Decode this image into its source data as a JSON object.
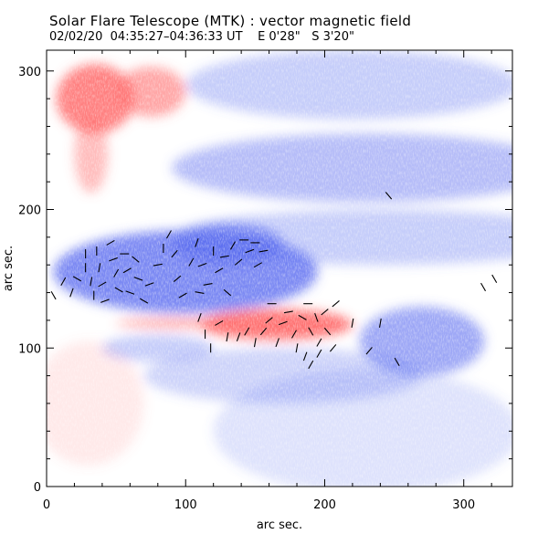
{
  "title": "Solar Flare Telescope (MTK) : vector magnetic field",
  "subtitle": {
    "date": "02/02/20",
    "time_range": "04:35:27–04:36:33 UT",
    "offset_e": "E 0'28\"",
    "offset_s": "S 3'20\""
  },
  "chart_data": {
    "type": "heatmap",
    "title": "Solar Flare Telescope (MTK) : vector magnetic field",
    "xlabel": "arc sec.",
    "ylabel": "arc sec.",
    "xlim": [
      0,
      335
    ],
    "ylim": [
      0,
      315
    ],
    "xticks": [
      0,
      100,
      200,
      300
    ],
    "yticks": [
      0,
      100,
      200,
      300
    ],
    "colors": {
      "positive": "#ff6b6b",
      "negative": "#5a6cf0",
      "background": "#ffffff",
      "vector": "#000000"
    },
    "regions": [
      {
        "polarity": "positive",
        "x": 35,
        "y": 280,
        "rx": 28,
        "ry": 25,
        "strength": 0.85
      },
      {
        "polarity": "positive",
        "x": 75,
        "y": 285,
        "rx": 25,
        "ry": 18,
        "strength": 0.6
      },
      {
        "polarity": "positive",
        "x": 32,
        "y": 240,
        "rx": 12,
        "ry": 28,
        "strength": 0.45
      },
      {
        "polarity": "positive",
        "x": 165,
        "y": 117,
        "rx": 55,
        "ry": 11,
        "strength": 0.95
      },
      {
        "polarity": "positive",
        "x": 95,
        "y": 118,
        "rx": 45,
        "ry": 4,
        "strength": 0.55
      },
      {
        "polarity": "positive",
        "x": 30,
        "y": 60,
        "rx": 40,
        "ry": 45,
        "strength": 0.15
      },
      {
        "polarity": "negative",
        "x": 220,
        "y": 290,
        "rx": 120,
        "ry": 25,
        "strength": 0.35
      },
      {
        "polarity": "negative",
        "x": 230,
        "y": 230,
        "rx": 140,
        "ry": 25,
        "strength": 0.45
      },
      {
        "polarity": "negative",
        "x": 240,
        "y": 180,
        "rx": 150,
        "ry": 20,
        "strength": 0.35
      },
      {
        "polarity": "negative",
        "x": 100,
        "y": 155,
        "rx": 95,
        "ry": 30,
        "strength": 0.8
      },
      {
        "polarity": "negative",
        "x": 130,
        "y": 175,
        "rx": 40,
        "ry": 15,
        "strength": 0.7
      },
      {
        "polarity": "negative",
        "x": 270,
        "y": 105,
        "rx": 45,
        "ry": 25,
        "strength": 0.6
      },
      {
        "polarity": "negative",
        "x": 170,
        "y": 80,
        "rx": 100,
        "ry": 20,
        "strength": 0.3
      },
      {
        "polarity": "negative",
        "x": 230,
        "y": 40,
        "rx": 110,
        "ry": 45,
        "strength": 0.2
      },
      {
        "polarity": "negative",
        "x": 80,
        "y": 100,
        "rx": 40,
        "ry": 10,
        "strength": 0.35
      }
    ],
    "vectors": [
      {
        "x": 12,
        "y": 148,
        "angle": 60
      },
      {
        "x": 18,
        "y": 140,
        "angle": 70
      },
      {
        "x": 22,
        "y": 150,
        "angle": -30
      },
      {
        "x": 28,
        "y": 168,
        "angle": 90
      },
      {
        "x": 28,
        "y": 158,
        "angle": 90
      },
      {
        "x": 32,
        "y": 148,
        "angle": 80
      },
      {
        "x": 34,
        "y": 138,
        "angle": 90
      },
      {
        "x": 36,
        "y": 170,
        "angle": 90
      },
      {
        "x": 38,
        "y": 158,
        "angle": 80
      },
      {
        "x": 40,
        "y": 146,
        "angle": 30
      },
      {
        "x": 42,
        "y": 134,
        "angle": 20
      },
      {
        "x": 46,
        "y": 176,
        "angle": 30
      },
      {
        "x": 48,
        "y": 164,
        "angle": 20
      },
      {
        "x": 50,
        "y": 154,
        "angle": 60
      },
      {
        "x": 52,
        "y": 142,
        "angle": -30
      },
      {
        "x": 56,
        "y": 168,
        "angle": 0
      },
      {
        "x": 58,
        "y": 156,
        "angle": 30
      },
      {
        "x": 60,
        "y": 140,
        "angle": -20
      },
      {
        "x": 64,
        "y": 164,
        "angle": -40
      },
      {
        "x": 66,
        "y": 150,
        "angle": -20
      },
      {
        "x": 70,
        "y": 134,
        "angle": -30
      },
      {
        "x": 74,
        "y": 146,
        "angle": 20
      },
      {
        "x": 80,
        "y": 160,
        "angle": 10
      },
      {
        "x": 84,
        "y": 172,
        "angle": 90
      },
      {
        "x": 88,
        "y": 182,
        "angle": 60
      },
      {
        "x": 92,
        "y": 168,
        "angle": 50
      },
      {
        "x": 94,
        "y": 150,
        "angle": 40
      },
      {
        "x": 98,
        "y": 138,
        "angle": 30
      },
      {
        "x": 104,
        "y": 162,
        "angle": 60
      },
      {
        "x": 108,
        "y": 176,
        "angle": 70
      },
      {
        "x": 112,
        "y": 160,
        "angle": 20
      },
      {
        "x": 116,
        "y": 146,
        "angle": 10
      },
      {
        "x": 120,
        "y": 170,
        "angle": 90
      },
      {
        "x": 124,
        "y": 156,
        "angle": 30
      },
      {
        "x": 128,
        "y": 166,
        "angle": 10
      },
      {
        "x": 130,
        "y": 140,
        "angle": -40
      },
      {
        "x": 134,
        "y": 174,
        "angle": 60
      },
      {
        "x": 138,
        "y": 162,
        "angle": 40
      },
      {
        "x": 142,
        "y": 178,
        "angle": 0
      },
      {
        "x": 146,
        "y": 170,
        "angle": 20
      },
      {
        "x": 150,
        "y": 176,
        "angle": 0
      },
      {
        "x": 152,
        "y": 160,
        "angle": 30
      },
      {
        "x": 156,
        "y": 170,
        "angle": 10
      },
      {
        "x": 110,
        "y": 122,
        "angle": 70
      },
      {
        "x": 114,
        "y": 110,
        "angle": 90
      },
      {
        "x": 118,
        "y": 100,
        "angle": 90
      },
      {
        "x": 124,
        "y": 118,
        "angle": 30
      },
      {
        "x": 130,
        "y": 108,
        "angle": 80
      },
      {
        "x": 138,
        "y": 108,
        "angle": 70
      },
      {
        "x": 144,
        "y": 112,
        "angle": 60
      },
      {
        "x": 150,
        "y": 104,
        "angle": 80
      },
      {
        "x": 156,
        "y": 112,
        "angle": 50
      },
      {
        "x": 160,
        "y": 120,
        "angle": 40
      },
      {
        "x": 162,
        "y": 132,
        "angle": 0
      },
      {
        "x": 166,
        "y": 104,
        "angle": 70
      },
      {
        "x": 170,
        "y": 118,
        "angle": 20
      },
      {
        "x": 174,
        "y": 126,
        "angle": 10
      },
      {
        "x": 178,
        "y": 110,
        "angle": 60
      },
      {
        "x": 180,
        "y": 100,
        "angle": 80
      },
      {
        "x": 184,
        "y": 122,
        "angle": -30
      },
      {
        "x": 188,
        "y": 132,
        "angle": 0
      },
      {
        "x": 190,
        "y": 112,
        "angle": -60
      },
      {
        "x": 194,
        "y": 122,
        "angle": -70
      },
      {
        "x": 196,
        "y": 104,
        "angle": 60
      },
      {
        "x": 200,
        "y": 126,
        "angle": 40
      },
      {
        "x": 202,
        "y": 112,
        "angle": -50
      },
      {
        "x": 206,
        "y": 100,
        "angle": 50
      },
      {
        "x": 208,
        "y": 132,
        "angle": 40
      },
      {
        "x": 196,
        "y": 96,
        "angle": 60
      },
      {
        "x": 186,
        "y": 94,
        "angle": 70
      },
      {
        "x": 190,
        "y": 88,
        "angle": 60
      },
      {
        "x": 220,
        "y": 118,
        "angle": 80
      },
      {
        "x": 232,
        "y": 98,
        "angle": 50
      },
      {
        "x": 240,
        "y": 118,
        "angle": 80
      },
      {
        "x": 252,
        "y": 90,
        "angle": -60
      },
      {
        "x": 246,
        "y": 210,
        "angle": -50
      },
      {
        "x": 314,
        "y": 144,
        "angle": -60
      },
      {
        "x": 322,
        "y": 150,
        "angle": -60
      },
      {
        "x": 5,
        "y": 138,
        "angle": -60
      },
      {
        "x": 110,
        "y": 140,
        "angle": -10
      }
    ]
  }
}
